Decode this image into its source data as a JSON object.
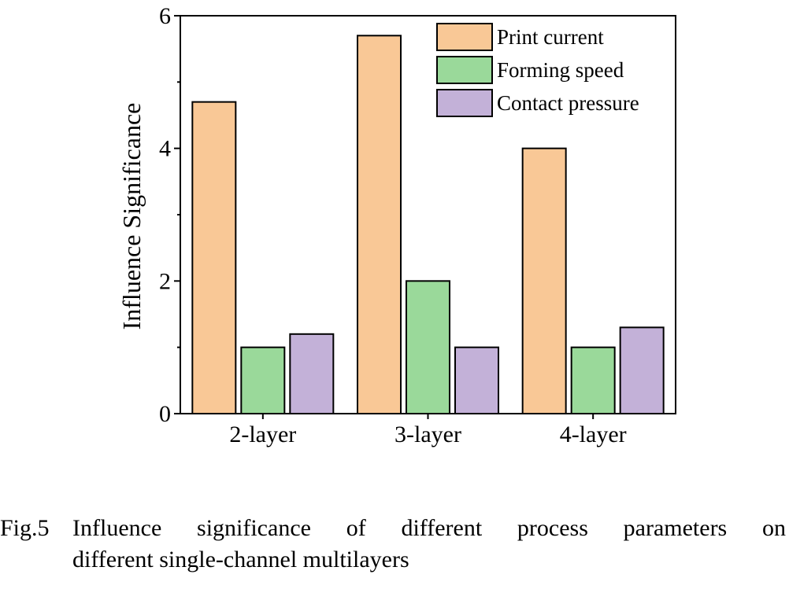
{
  "chart_data": {
    "type": "bar",
    "title": "",
    "xlabel": "",
    "ylabel": "Influence Significance",
    "ylim": [
      0,
      6
    ],
    "yticks": [
      0,
      2,
      4,
      6
    ],
    "categories": [
      "2-layer",
      "3-layer",
      "4-layer"
    ],
    "series": [
      {
        "name": "Print current",
        "values": [
          4.7,
          5.7,
          4.0
        ],
        "color": "#f9c896"
      },
      {
        "name": "Forming speed",
        "values": [
          1.0,
          2.0,
          1.0
        ],
        "color": "#9ad99a"
      },
      {
        "name": "Contact pressure",
        "values": [
          1.2,
          1.0,
          1.3
        ],
        "color": "#c3b1d8"
      }
    ],
    "legend_position": "top-right",
    "grid": false
  },
  "caption": {
    "label": "Fig.5",
    "line1": "Influence significance of different process parameters on",
    "line2": "different single-channel multilayers"
  }
}
